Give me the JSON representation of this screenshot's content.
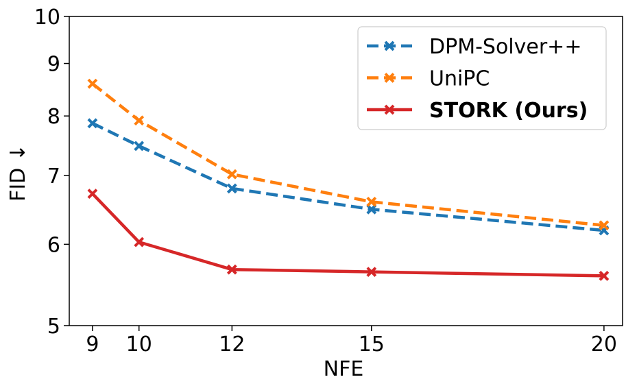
{
  "chart_data": {
    "type": "line",
    "xlabel": "NFE",
    "ylabel": "FID ↓",
    "x": [
      9,
      10,
      12,
      15,
      20
    ],
    "xticks": [
      "9",
      "10",
      "12",
      "15",
      "20"
    ],
    "xlim": [
      8.5,
      20.4
    ],
    "ylim": [
      5,
      10
    ],
    "yscale": "log",
    "yticks": [
      "5",
      "6",
      "7",
      "8",
      "9",
      "10"
    ],
    "grid": false,
    "legend_position": "top-right",
    "series": [
      {
        "name": "DPM-Solver++",
        "color": "#1f77b4",
        "linestyle": "dashed",
        "marker": "x",
        "bold": false,
        "values": [
          7.87,
          7.48,
          6.8,
          6.49,
          6.19
        ]
      },
      {
        "name": "UniPC",
        "color": "#ff7f0e",
        "linestyle": "dashed",
        "marker": "x",
        "bold": false,
        "values": [
          8.6,
          7.92,
          7.02,
          6.6,
          6.26
        ]
      },
      {
        "name": "STORK (Ours)",
        "color": "#d62728",
        "linestyle": "solid",
        "marker": "x",
        "bold": true,
        "values": [
          6.72,
          6.03,
          5.67,
          5.64,
          5.59
        ]
      }
    ]
  }
}
